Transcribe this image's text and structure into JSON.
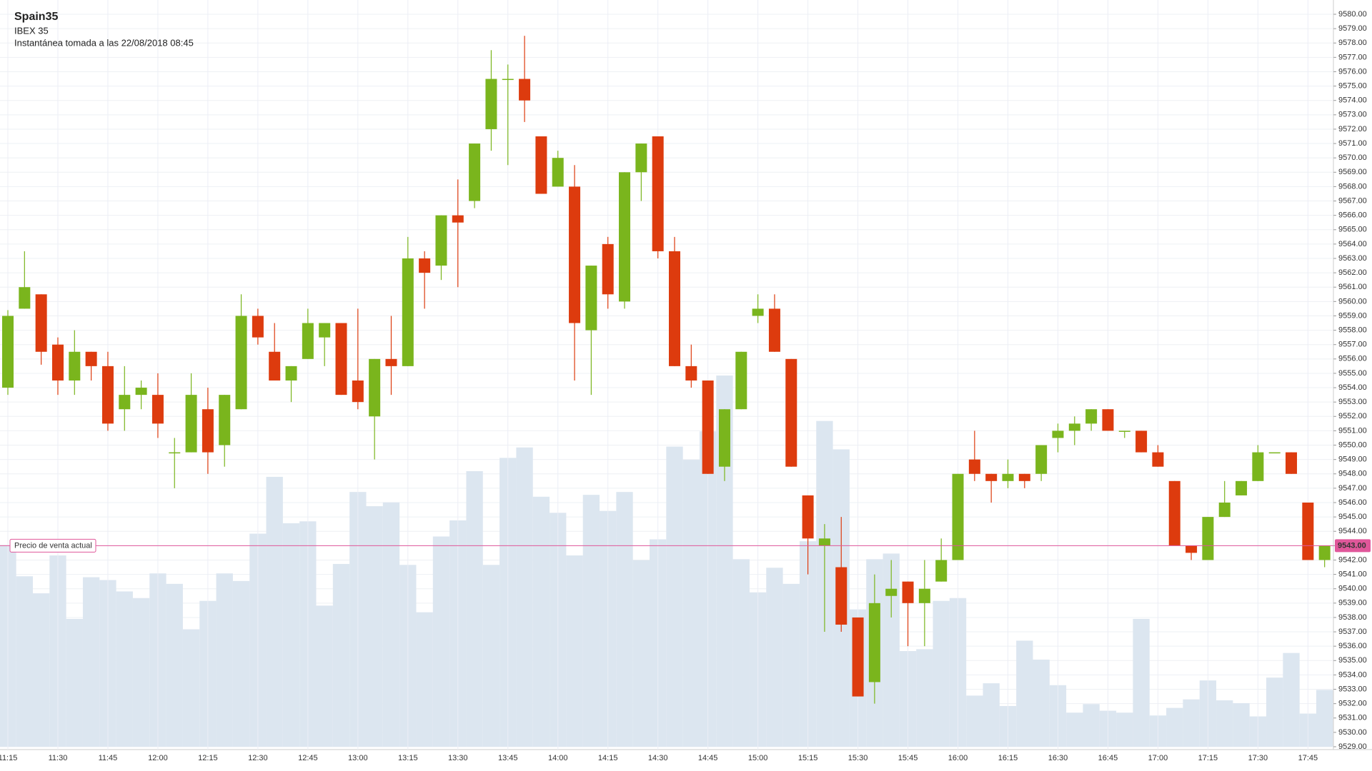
{
  "chart_data": {
    "type": "candlestick",
    "title": "Spain35",
    "subtitle": "IBEX 35",
    "snapshot": "Instantánea tomada a las 22/08/2018 08:45",
    "categories": [
      "11:15",
      null,
      null,
      "11:30",
      null,
      null,
      "11:45",
      null,
      null,
      "12:00",
      null,
      null,
      "12:15",
      null,
      null,
      "12:30",
      null,
      null,
      "12:45",
      null,
      null,
      "13:00",
      null,
      null,
      "13:15",
      null,
      null,
      "13:30",
      null,
      null,
      "13:45",
      null,
      null,
      "14:00",
      null,
      null,
      "14:15",
      null,
      null,
      "14:30",
      null,
      null,
      "14:45",
      null,
      null,
      "15:00",
      null,
      null,
      "15:15",
      null,
      null,
      "15:30",
      null,
      null,
      "15:45",
      null,
      null,
      "16:00",
      null,
      null,
      "16:15",
      null,
      null,
      "16:30",
      null,
      null,
      "16:45",
      null,
      null,
      "17:00",
      null,
      null,
      "17:15",
      null,
      null,
      "17:30",
      null,
      null,
      "17:45",
      null
    ],
    "open": [
      9554,
      9559.5,
      9560.5,
      9557,
      9554.5,
      9556.5,
      9555.5,
      9552.5,
      9553.5,
      9553.5,
      9549.5,
      9549.5,
      9552.5,
      9550,
      9552.5,
      9559,
      9556.5,
      9554.5,
      9556,
      9557.5,
      9558.5,
      9554.5,
      9552,
      9556,
      9555.5,
      9563,
      9562.5,
      9566,
      9567,
      9572,
      9575.5,
      9575.5,
      9571.5,
      9568,
      9568,
      9558,
      9564,
      9560,
      9569,
      9571.5,
      9563.5,
      9555.5,
      9554.5,
      9548.5,
      9552.5,
      9559,
      9559.5,
      9556,
      9546.5,
      9543,
      9541.5,
      9538,
      9533.5,
      9539.5,
      9540.5,
      9539,
      9540.5,
      9542,
      9549,
      9548,
      9547.5,
      9548,
      9548,
      9550.5,
      9551,
      9551.5,
      9552.5,
      9551,
      9551,
      9549.5,
      9547.5,
      9543,
      9542,
      9545,
      9546.5,
      9547.5,
      9549.5,
      9549.5,
      9546,
      9542
    ],
    "high": [
      9559.4,
      9563.5,
      9560.5,
      9557.5,
      9558,
      9556.5,
      9556.5,
      9555.5,
      9554.5,
      9555,
      9550.5,
      9555,
      9554,
      9553.5,
      9560.5,
      9559.5,
      9558.5,
      9555.5,
      9559.5,
      9558.5,
      9558.5,
      9559.5,
      9556,
      9559,
      9564.5,
      9563.5,
      9566,
      9568.5,
      9571,
      9577.5,
      9576.5,
      9578.5,
      9571.5,
      9570.5,
      9569.5,
      9562.5,
      9564.5,
      9569,
      9571,
      9571.5,
      9564.5,
      9557,
      9554.5,
      9552.5,
      9556.5,
      9560.5,
      9560.5,
      9556,
      9546.5,
      9544.5,
      9545,
      9538,
      9541,
      9542,
      9540.5,
      9542,
      9543.5,
      9548,
      9551,
      9548,
      9549,
      9548,
      9550,
      9551.5,
      9552,
      9552.5,
      9552.5,
      9551,
      9551,
      9550,
      9547.5,
      9543,
      9545,
      9547.5,
      9547.5,
      9550,
      9549.5,
      9549.5,
      9546,
      9543
    ],
    "low": [
      9553.5,
      9559.5,
      9555.6,
      9553.5,
      9553.5,
      9554.5,
      9551,
      9551,
      9552.5,
      9550.5,
      9547,
      9549.5,
      9548,
      9548.5,
      9552.5,
      9557,
      9554.5,
      9553,
      9556,
      9555.5,
      9553.5,
      9552.5,
      9549,
      9553.5,
      9555.5,
      9559.5,
      9561.5,
      9561,
      9566.5,
      9570.5,
      9569.5,
      9572.5,
      9567.5,
      9568,
      9554.5,
      9553.5,
      9559.5,
      9559.5,
      9567,
      9563,
      9555.5,
      9554,
      9548,
      9547.5,
      9552.5,
      9558.5,
      9556.5,
      9548.5,
      9541,
      9537,
      9537,
      9532.5,
      9532,
      9538,
      9536,
      9536,
      9540.5,
      9542,
      9547.5,
      9546,
      9547,
      9547,
      9547.5,
      9549.5,
      9550,
      9551,
      9551,
      9550.5,
      9549.5,
      9548.5,
      9543,
      9542,
      9542,
      9545,
      9546.5,
      9547.5,
      9549.5,
      9548,
      9542,
      9541.5
    ],
    "close": [
      9559,
      9561,
      9556.5,
      9554.5,
      9556.5,
      9555.5,
      9551.5,
      9553.5,
      9554,
      9551.5,
      9549.5,
      9553.5,
      9549.5,
      9553.5,
      9559,
      9557.5,
      9554.5,
      9555.5,
      9558.5,
      9558.5,
      9553.5,
      9553,
      9556,
      9555.5,
      9563,
      9562,
      9566,
      9565.5,
      9571,
      9575.5,
      9575.5,
      9574,
      9567.5,
      9570,
      9558.5,
      9562.5,
      9560.5,
      9569,
      9571,
      9563.5,
      9555.5,
      9554.5,
      9548,
      9552.5,
      9556.5,
      9559.5,
      9556.5,
      9548.5,
      9543.5,
      9543.5,
      9537.5,
      9532.5,
      9539,
      9540,
      9539,
      9540,
      9542,
      9548,
      9548,
      9547.5,
      9548,
      9547.5,
      9550,
      9551,
      9551.5,
      9552.5,
      9551,
      9551,
      9549.5,
      9548.5,
      9543,
      9542.5,
      9545,
      9546,
      9547.5,
      9549.5,
      9549.5,
      9548,
      9542,
      9543
    ],
    "volume": [
      213,
      180,
      162,
      202,
      135,
      179,
      176,
      164,
      157,
      183,
      172,
      124,
      154,
      183,
      175,
      225,
      285,
      236,
      238,
      149,
      193,
      269,
      254,
      258,
      192,
      142,
      222,
      239,
      291,
      192,
      305,
      316,
      264,
      247,
      202,
      266,
      249,
      269,
      197,
      219,
      317,
      303,
      333,
      392,
      198,
      163,
      189,
      172,
      217,
      344,
      314,
      145,
      198,
      204,
      101,
      103,
      154,
      157,
      54,
      67,
      43,
      112,
      92,
      65,
      36,
      45,
      38,
      36,
      135,
      33,
      41,
      50,
      70,
      49,
      46,
      32,
      73,
      99,
      35,
      60
    ],
    "up_color": "#7ab51d",
    "down_color": "#dd3b0e",
    "volume_color": "#dce6f0",
    "current_price": {
      "value": 9543,
      "label": "9543.00"
    },
    "current_price_label": "Precio de venta actual",
    "current_price_color": "#e0579a",
    "ylim": [
      9529,
      9580
    ],
    "yticks": [
      {
        "value": 9529,
        "label": "9529.00"
      },
      {
        "value": 9530,
        "label": "9530.00"
      },
      {
        "value": 9531,
        "label": "9531.00"
      },
      {
        "value": 9532,
        "label": "9532.00"
      },
      {
        "value": 9533,
        "label": "9533.00"
      },
      {
        "value": 9534,
        "label": "9534.00"
      },
      {
        "value": 9535,
        "label": "9535.00"
      },
      {
        "value": 9536,
        "label": "9536.00"
      },
      {
        "value": 9537,
        "label": "9537.00"
      },
      {
        "value": 9538,
        "label": "9538.00"
      },
      {
        "value": 9539,
        "label": "9539.00"
      },
      {
        "value": 9540,
        "label": "9540.00"
      },
      {
        "value": 9541,
        "label": "9541.00"
      },
      {
        "value": 9542,
        "label": "9542.00"
      },
      {
        "value": 9543,
        "label": "9543.00"
      },
      {
        "value": 9544,
        "label": "9544.00"
      },
      {
        "value": 9545,
        "label": "9545.00"
      },
      {
        "value": 9546,
        "label": "9546.00"
      },
      {
        "value": 9547,
        "label": "9547.00"
      },
      {
        "value": 9548,
        "label": "9548.00"
      },
      {
        "value": 9549,
        "label": "9549.00"
      },
      {
        "value": 9550,
        "label": "9550.00"
      },
      {
        "value": 9551,
        "label": "9551.00"
      },
      {
        "value": 9552,
        "label": "9552.00"
      },
      {
        "value": 9553,
        "label": "9553.00"
      },
      {
        "value": 9554,
        "label": "9554.00"
      },
      {
        "value": 9555,
        "label": "9555.00"
      },
      {
        "value": 9556,
        "label": "9556.00"
      },
      {
        "value": 9557,
        "label": "9557.00"
      },
      {
        "value": 9558,
        "label": "9558.00"
      },
      {
        "value": 9559,
        "label": "9559.00"
      },
      {
        "value": 9560,
        "label": "9560.00"
      },
      {
        "value": 9561,
        "label": "9561.00"
      },
      {
        "value": 9562,
        "label": "9562.00"
      },
      {
        "value": 9563,
        "label": "9563.00"
      },
      {
        "value": 9564,
        "label": "9564.00"
      },
      {
        "value": 9565,
        "label": "9565.00"
      },
      {
        "value": 9566,
        "label": "9566.00"
      },
      {
        "value": 9567,
        "label": "9567.00"
      },
      {
        "value": 9568,
        "label": "9568.00"
      },
      {
        "value": 9569,
        "label": "9569.00"
      },
      {
        "value": 9570,
        "label": "9570.00"
      },
      {
        "value": 9571,
        "label": "9571.00"
      },
      {
        "value": 9572,
        "label": "9572.00"
      },
      {
        "value": 9573,
        "label": "9573.00"
      },
      {
        "value": 9574,
        "label": "9574.00"
      },
      {
        "value": 9575,
        "label": "9575.00"
      },
      {
        "value": 9576,
        "label": "9576.00"
      },
      {
        "value": 9577,
        "label": "9577.00"
      },
      {
        "value": 9578,
        "label": "9578.00"
      },
      {
        "value": 9579,
        "label": "9579.00"
      },
      {
        "value": 9580,
        "label": "9580.00"
      }
    ],
    "grid": true
  }
}
